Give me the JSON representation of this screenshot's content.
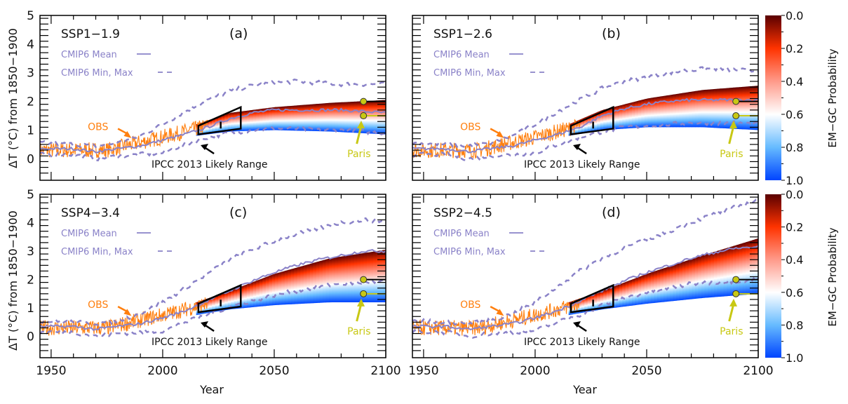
{
  "figure": {
    "ylabel": "ΔT (°C) from 1850−1900",
    "xlabel": "Year",
    "colorbar_label": "EM−GC Probability"
  },
  "chart_data": [
    {
      "type": "line",
      "panel": "(a)",
      "scenario": "SSP1-1.9",
      "title": "SSP1−1.9",
      "xlim": [
        1945,
        2100
      ],
      "ylim": [
        -0.75,
        5
      ],
      "xticks": [
        1950,
        2000,
        2050,
        2100
      ],
      "yticks": [
        0,
        1,
        2,
        3,
        4,
        5
      ],
      "legend": [
        "CMIP6 Mean",
        "CMIP6 Min, Max"
      ],
      "legend_position": "top-left",
      "annotations": {
        "obs": "OBS",
        "ipcc": "IPCC 2013 Likely Range",
        "paris": "Paris"
      },
      "paris_targets": [
        2.0,
        1.5
      ],
      "ipcc_box": {
        "x": [
          2016,
          2035
        ],
        "top": [
          1.15,
          1.8
        ],
        "bottom": [
          0.85,
          1.05
        ],
        "mid_year": 2026
      },
      "emgc_band": {
        "x": [
          2015,
          2030,
          2050,
          2075,
          2100
        ],
        "p0": [
          1.2,
          1.6,
          1.8,
          1.95,
          2.05
        ],
        "p1": [
          0.8,
          0.95,
          1.0,
          0.95,
          0.85
        ]
      },
      "cmip6_mean": {
        "x": [
          1945,
          1960,
          1970,
          1980,
          1990,
          2000,
          2010,
          2020,
          2030,
          2040,
          2050,
          2060,
          2070,
          2080,
          2090,
          2100
        ],
        "y": [
          0.35,
          0.35,
          0.25,
          0.35,
          0.45,
          0.65,
          0.85,
          1.1,
          1.4,
          1.6,
          1.7,
          1.7,
          1.7,
          1.7,
          1.65,
          1.6
        ]
      },
      "cmip6_max": {
        "x": [
          1945,
          1960,
          1970,
          1980,
          1990,
          2000,
          2010,
          2020,
          2030,
          2040,
          2050,
          2060,
          2070,
          2080,
          2090,
          2100
        ],
        "y": [
          0.55,
          0.5,
          0.45,
          0.55,
          0.8,
          1.2,
          1.65,
          2.05,
          2.35,
          2.55,
          2.65,
          2.7,
          2.65,
          2.6,
          2.6,
          2.6
        ]
      },
      "cmip6_min": {
        "x": [
          1945,
          1960,
          1970,
          1980,
          1990,
          2000,
          2010,
          2020,
          2030,
          2040,
          2050,
          2060,
          2070,
          2080,
          2090,
          2100
        ],
        "y": [
          0.15,
          0.15,
          0.0,
          0.1,
          0.15,
          0.2,
          0.5,
          0.75,
          0.9,
          1.0,
          1.05,
          1.05,
          1.0,
          1.0,
          0.95,
          0.9
        ]
      },
      "obs": {
        "x_start": 1945,
        "x_end": 2020,
        "trend": [
          [
            1945,
            0.3
          ],
          [
            1975,
            0.3
          ],
          [
            2000,
            0.75
          ],
          [
            2020,
            1.15
          ]
        ]
      }
    },
    {
      "type": "line",
      "panel": "(b)",
      "scenario": "SSP1-2.6",
      "title": "SSP1−2.6",
      "xlim": [
        1945,
        2100
      ],
      "ylim": [
        -0.75,
        5
      ],
      "xticks": [
        1950,
        2000,
        2050,
        2100
      ],
      "yticks": [
        0,
        1,
        2,
        3,
        4,
        5
      ],
      "legend": [
        "CMIP6 Mean",
        "CMIP6 Min, Max"
      ],
      "legend_position": "top-left",
      "annotations": {
        "obs": "OBS",
        "ipcc": "IPCC 2013 Likely Range",
        "paris": "Paris"
      },
      "paris_targets": [
        2.0,
        1.5
      ],
      "ipcc_box": {
        "x": [
          2016,
          2035
        ],
        "top": [
          1.15,
          1.8
        ],
        "bottom": [
          0.85,
          1.05
        ],
        "mid_year": 2026
      },
      "emgc_band": {
        "x": [
          2015,
          2030,
          2050,
          2075,
          2100
        ],
        "p0": [
          1.2,
          1.7,
          2.1,
          2.4,
          2.55
        ],
        "p1": [
          0.8,
          1.0,
          1.1,
          1.1,
          1.0
        ]
      },
      "cmip6_mean": {
        "x": [
          1945,
          1960,
          1970,
          1980,
          1990,
          2000,
          2010,
          2020,
          2030,
          2040,
          2050,
          2060,
          2070,
          2080,
          2090,
          2100
        ],
        "y": [
          0.35,
          0.35,
          0.25,
          0.35,
          0.45,
          0.65,
          0.85,
          1.1,
          1.5,
          1.75,
          1.9,
          2.0,
          2.05,
          2.05,
          2.05,
          2.05
        ]
      },
      "cmip6_max": {
        "x": [
          1945,
          1960,
          1970,
          1980,
          1990,
          2000,
          2010,
          2020,
          2030,
          2040,
          2050,
          2060,
          2070,
          2080,
          2090,
          2100
        ],
        "y": [
          0.55,
          0.5,
          0.45,
          0.55,
          0.8,
          1.2,
          1.65,
          2.05,
          2.45,
          2.7,
          2.85,
          3.0,
          3.1,
          3.15,
          3.1,
          3.05
        ]
      },
      "cmip6_min": {
        "x": [
          1945,
          1960,
          1970,
          1980,
          1990,
          2000,
          2010,
          2020,
          2030,
          2040,
          2050,
          2060,
          2070,
          2080,
          2090,
          2100
        ],
        "y": [
          0.15,
          0.15,
          0.0,
          0.1,
          0.15,
          0.2,
          0.5,
          0.75,
          0.95,
          1.1,
          1.15,
          1.2,
          1.25,
          1.25,
          1.25,
          1.2
        ]
      },
      "obs": {
        "x_start": 1945,
        "x_end": 2020,
        "trend": [
          [
            1945,
            0.3
          ],
          [
            1975,
            0.3
          ],
          [
            2000,
            0.75
          ],
          [
            2020,
            1.15
          ]
        ]
      }
    },
    {
      "type": "line",
      "panel": "(c)",
      "scenario": "SSP4-3.4",
      "title": "SSP4−3.4",
      "xlim": [
        1945,
        2100
      ],
      "ylim": [
        -0.75,
        5
      ],
      "xticks": [
        1950,
        2000,
        2050,
        2100
      ],
      "yticks": [
        0,
        1,
        2,
        3,
        4,
        5
      ],
      "legend": [
        "CMIP6 Mean",
        "CMIP6 Min, Max"
      ],
      "legend_position": "top-left",
      "annotations": {
        "obs": "OBS",
        "ipcc": "IPCC 2013 Likely Range",
        "paris": "Paris"
      },
      "paris_targets": [
        2.0,
        1.5
      ],
      "ipcc_box": {
        "x": [
          2016,
          2035
        ],
        "top": [
          1.15,
          1.8
        ],
        "bottom": [
          0.85,
          1.05
        ],
        "mid_year": 2026
      },
      "emgc_band": {
        "x": [
          2015,
          2030,
          2050,
          2075,
          2100
        ],
        "p0": [
          1.2,
          1.6,
          2.2,
          2.75,
          3.05
        ],
        "p1": [
          0.75,
          0.95,
          1.1,
          1.2,
          1.2
        ]
      },
      "cmip6_mean": {
        "x": [
          1945,
          1960,
          1970,
          1980,
          1990,
          2000,
          2010,
          2020,
          2030,
          2040,
          2050,
          2060,
          2070,
          2080,
          2090,
          2100
        ],
        "y": [
          0.35,
          0.35,
          0.25,
          0.35,
          0.45,
          0.65,
          0.9,
          1.25,
          1.6,
          1.95,
          2.25,
          2.5,
          2.7,
          2.85,
          3.0,
          3.0
        ]
      },
      "cmip6_max": {
        "x": [
          1945,
          1960,
          1970,
          1980,
          1990,
          2000,
          2010,
          2020,
          2030,
          2040,
          2050,
          2060,
          2070,
          2080,
          2090,
          2100
        ],
        "y": [
          0.55,
          0.5,
          0.45,
          0.55,
          0.8,
          1.2,
          1.7,
          2.2,
          2.7,
          3.05,
          3.35,
          3.6,
          3.8,
          4.0,
          4.1,
          4.05
        ]
      },
      "cmip6_min": {
        "x": [
          1945,
          1960,
          1970,
          1980,
          1990,
          2000,
          2010,
          2020,
          2030,
          2040,
          2050,
          2060,
          2070,
          2080,
          2090,
          2100
        ],
        "y": [
          0.15,
          0.15,
          0.0,
          0.1,
          0.15,
          0.2,
          0.5,
          0.75,
          1.05,
          1.25,
          1.45,
          1.6,
          1.75,
          1.85,
          1.9,
          1.95
        ]
      },
      "obs": {
        "x_start": 1945,
        "x_end": 2020,
        "trend": [
          [
            1945,
            0.3
          ],
          [
            1975,
            0.3
          ],
          [
            2000,
            0.75
          ],
          [
            2020,
            1.15
          ]
        ]
      }
    },
    {
      "type": "line",
      "panel": "(d)",
      "scenario": "SSP2-4.5",
      "title": "SSP2−4.5",
      "xlim": [
        1945,
        2100
      ],
      "ylim": [
        -0.75,
        5
      ],
      "xticks": [
        1950,
        2000,
        2050,
        2100
      ],
      "yticks": [
        0,
        1,
        2,
        3,
        4,
        5
      ],
      "legend": [
        "CMIP6 Mean",
        "CMIP6 Min, Max"
      ],
      "legend_position": "top-left",
      "annotations": {
        "obs": "OBS",
        "ipcc": "IPCC 2013 Likely Range",
        "paris": "Paris"
      },
      "paris_targets": [
        2.0,
        1.5
      ],
      "ipcc_box": {
        "x": [
          2016,
          2035
        ],
        "top": [
          1.15,
          1.8
        ],
        "bottom": [
          0.85,
          1.05
        ],
        "mid_year": 2026
      },
      "emgc_band": {
        "x": [
          2015,
          2030,
          2050,
          2075,
          2100
        ],
        "p0": [
          1.2,
          1.6,
          2.2,
          2.85,
          3.45
        ],
        "p1": [
          0.75,
          0.95,
          1.15,
          1.35,
          1.5
        ]
      },
      "cmip6_mean": {
        "x": [
          1945,
          1960,
          1970,
          1980,
          1990,
          2000,
          2010,
          2020,
          2030,
          2040,
          2050,
          2060,
          2070,
          2080,
          2090,
          2100
        ],
        "y": [
          0.35,
          0.35,
          0.25,
          0.35,
          0.45,
          0.65,
          0.9,
          1.25,
          1.6,
          1.95,
          2.25,
          2.5,
          2.75,
          2.95,
          3.1,
          3.15
        ]
      },
      "cmip6_max": {
        "x": [
          1945,
          1960,
          1970,
          1980,
          1990,
          2000,
          2010,
          2020,
          2030,
          2040,
          2050,
          2060,
          2070,
          2080,
          2090,
          2100
        ],
        "y": [
          0.55,
          0.5,
          0.45,
          0.55,
          0.8,
          1.2,
          1.75,
          2.3,
          2.75,
          3.1,
          3.4,
          3.7,
          4.0,
          4.3,
          4.55,
          4.8
        ]
      },
      "cmip6_min": {
        "x": [
          1945,
          1960,
          1970,
          1980,
          1990,
          2000,
          2010,
          2020,
          2030,
          2040,
          2050,
          2060,
          2070,
          2080,
          2090,
          2100
        ],
        "y": [
          0.15,
          0.15,
          0.0,
          0.1,
          0.15,
          0.2,
          0.5,
          0.75,
          1.1,
          1.35,
          1.55,
          1.7,
          1.85,
          1.9,
          1.95,
          2.0
        ]
      },
      "obs": {
        "x_start": 1945,
        "x_end": 2020,
        "trend": [
          [
            1945,
            0.3
          ],
          [
            1975,
            0.3
          ],
          [
            2000,
            0.75
          ],
          [
            2020,
            1.15
          ]
        ]
      }
    }
  ],
  "colorbar": {
    "range": [
      0.0,
      1.0
    ],
    "ticks": [
      "0.0",
      "0.2",
      "0.4",
      "0.6",
      "0.8",
      "1.0"
    ],
    "stops": [
      "#5a0000",
      "#ff3300",
      "#ff9a8a",
      "#ffffff",
      "#66bbff",
      "#0044ff"
    ]
  },
  "colors": {
    "obs": "#ff7f0e",
    "cmip6": "#8a82c8",
    "paris": "#c8c814",
    "frame": "#000000"
  }
}
